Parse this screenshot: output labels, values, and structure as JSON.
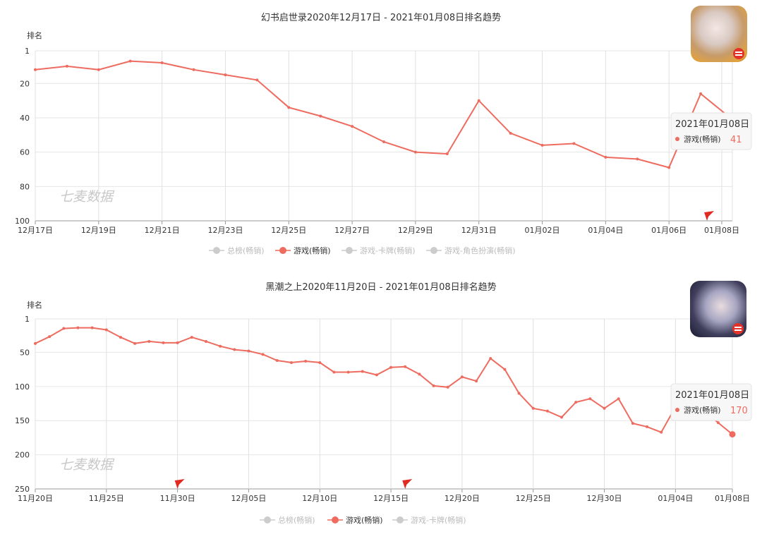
{
  "charts": [
    {
      "title": "幻书启世录2020年12月17日 - 2021年01月08日排名趋势",
      "ylabel": "排名",
      "watermark": "七麦数据",
      "x_labels": [
        "12月17日",
        "12月19日",
        "12月21日",
        "12月23日",
        "12月25日",
        "12月27日",
        "12月29日",
        "12月31日",
        "01月02日",
        "01月04日",
        "01月06日",
        "01月08日"
      ],
      "y_labels": [
        "1",
        "20",
        "40",
        "60",
        "80",
        "100"
      ],
      "legend": [
        "总榜(畅销)",
        "游戏(畅销)",
        "游戏-卡牌(畅销)",
        "游戏-角色扮演(畅销)"
      ],
      "tooltip": {
        "date": "2021年01月08日",
        "series": "游戏(畅销)",
        "value": "41"
      },
      "icon": "game-app-icon"
    },
    {
      "title": "黑潮之上2020年11月20日 - 2021年01月08日排名趋势",
      "ylabel": "排名",
      "watermark": "七麦数据",
      "x_labels": [
        "11月20日",
        "11月25日",
        "11月30日",
        "12月05日",
        "12月10日",
        "12月15日",
        "12月20日",
        "12月25日",
        "12月30日",
        "01月04日",
        "01月08日"
      ],
      "y_labels": [
        "1",
        "50",
        "100",
        "150",
        "200",
        "250"
      ],
      "legend": [
        "总榜(畅销)",
        "游戏(畅销)",
        "游戏-卡牌(畅销)"
      ],
      "tooltip": {
        "date": "2021年01月08日",
        "series": "游戏(畅销)",
        "value": "170"
      },
      "icon": "game-app-icon"
    }
  ],
  "chart_data": [
    {
      "type": "line",
      "title": "幻书启世录2020年12月17日 - 2021年01月08日排名趋势",
      "ylabel": "排名",
      "y_inverted": true,
      "ylim": [
        1,
        100
      ],
      "x_start": "2020-12-17",
      "x": [
        "12-17",
        "12-18",
        "12-19",
        "12-20",
        "12-21",
        "12-22",
        "12-23",
        "12-24",
        "12-25",
        "12-26",
        "12-27",
        "12-28",
        "12-29",
        "12-30",
        "12-31",
        "01-01",
        "01-02",
        "01-03",
        "01-04",
        "01-05",
        "01-06",
        "01-07",
        "01-08"
      ],
      "series": [
        {
          "name": "游戏(畅销)",
          "color": "#ee6b5f",
          "values": [
            12,
            10,
            12,
            7,
            8,
            12,
            15,
            18,
            34,
            39,
            45,
            54,
            60,
            61,
            30,
            49,
            56,
            55,
            63,
            64,
            69,
            26,
            41
          ]
        }
      ],
      "legend_inactive": [
        "总榜(畅销)",
        "游戏-卡牌(畅销)",
        "游戏-角色扮演(畅销)"
      ],
      "grid": true,
      "legend_position": "bottom"
    },
    {
      "type": "line",
      "title": "黑潮之上2020年11月20日 - 2021年01月08日排名趋势",
      "ylabel": "排名",
      "y_inverted": true,
      "ylim": [
        1,
        250
      ],
      "x_start": "2020-11-20",
      "x": [
        "11-20",
        "11-21",
        "11-22",
        "11-23",
        "11-24",
        "11-25",
        "11-26",
        "11-27",
        "11-28",
        "11-29",
        "11-30",
        "12-01",
        "12-02",
        "12-03",
        "12-04",
        "12-05",
        "12-06",
        "12-07",
        "12-08",
        "12-09",
        "12-10",
        "12-11",
        "12-12",
        "12-13",
        "12-14",
        "12-15",
        "12-16",
        "12-17",
        "12-18",
        "12-19",
        "12-20",
        "12-21",
        "12-22",
        "12-23",
        "12-24",
        "12-25",
        "12-26",
        "12-27",
        "12-28",
        "12-29",
        "12-30",
        "12-31",
        "01-01",
        "01-02",
        "01-03",
        "01-04",
        "01-05",
        "01-06",
        "01-07",
        "01-08"
      ],
      "series": [
        {
          "name": "游戏(畅销)",
          "color": "#ee6b5f",
          "values": [
            37,
            27,
            15,
            14,
            14,
            17,
            28,
            37,
            34,
            36,
            36,
            28,
            34,
            41,
            46,
            48,
            53,
            62,
            65,
            63,
            65,
            79,
            79,
            78,
            83,
            72,
            71,
            82,
            99,
            101,
            86,
            92,
            59,
            75,
            110,
            132,
            136,
            145,
            123,
            118,
            132,
            118,
            154,
            159,
            167,
            130,
            128,
            135,
            153,
            170
          ]
        }
      ],
      "legend_inactive": [
        "总榜(畅销)",
        "游戏-卡牌(畅销)"
      ],
      "grid": true,
      "legend_position": "bottom"
    }
  ]
}
